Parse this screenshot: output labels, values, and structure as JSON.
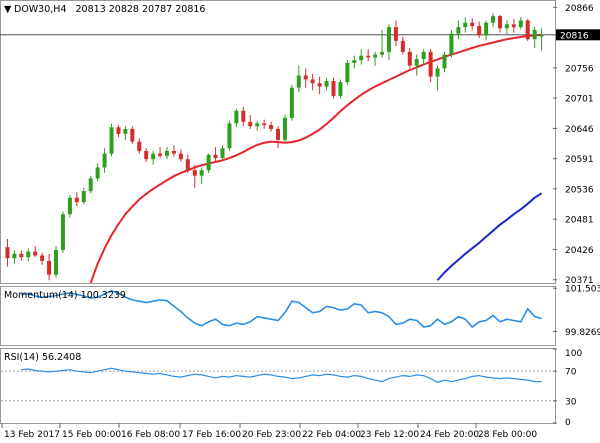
{
  "colors": {
    "bull": "#2e9e1f",
    "bear": "#d62b2b",
    "ma_fast": "#e8242a",
    "ma_slow": "#2026c9",
    "oscillator": "#2b8de8",
    "current_price_tag_bg": "#000000"
  },
  "chart_data": [
    {
      "type": "candlestick",
      "title": "DOW30,H4  20813 20828 20787 20816",
      "header": {
        "symbol_tf": "DOW30,H4",
        "ohlc": "20813 20828 20787 20816"
      },
      "x_tick_labels": [
        "13 Feb 2017",
        "15 Feb 00:00",
        "16 Feb 08:00",
        "17 Feb 16:00",
        "20 Feb 23:00",
        "22 Feb 04:00",
        "23 Feb 12:00",
        "24 Feb 20:00",
        "28 Feb 00:00"
      ],
      "y_tick_labels": [
        "20866",
        "20816",
        "20756",
        "20701",
        "20646",
        "20591",
        "20536",
        "20481",
        "20426",
        "20371"
      ],
      "ylim": [
        20365,
        20872
      ],
      "current_price": 20816,
      "current_price_label": "20816",
      "candles": [
        [
          20430,
          20445,
          20395,
          20410
        ],
        [
          20410,
          20425,
          20400,
          20418
        ],
        [
          20418,
          20424,
          20406,
          20412
        ],
        [
          20412,
          20428,
          20404,
          20422
        ],
        [
          20422,
          20432,
          20412,
          20415
        ],
        [
          20415,
          20420,
          20398,
          20405
        ],
        [
          20405,
          20418,
          20370,
          20380
        ],
        [
          20380,
          20432,
          20375,
          20425
        ],
        [
          20425,
          20495,
          20420,
          20490
        ],
        [
          20490,
          20525,
          20484,
          20520
        ],
        [
          20520,
          20530,
          20505,
          20512
        ],
        [
          20512,
          20538,
          20508,
          20532
        ],
        [
          20532,
          20560,
          20528,
          20555
        ],
        [
          20555,
          20582,
          20550,
          20575
        ],
        [
          20575,
          20610,
          20565,
          20600
        ],
        [
          20600,
          20655,
          20595,
          20648
        ],
        [
          20648,
          20652,
          20630,
          20636
        ],
        [
          20636,
          20650,
          20625,
          20645
        ],
        [
          20645,
          20650,
          20618,
          20622
        ],
        [
          20622,
          20628,
          20600,
          20605
        ],
        [
          20605,
          20610,
          20585,
          20590
        ],
        [
          20590,
          20605,
          20580,
          20600
        ],
        [
          20600,
          20612,
          20592,
          20596
        ],
        [
          20596,
          20612,
          20590,
          20605
        ],
        [
          20605,
          20615,
          20595,
          20600
        ],
        [
          20600,
          20608,
          20585,
          20590
        ],
        [
          20590,
          20598,
          20565,
          20570
        ],
        [
          20570,
          20580,
          20538,
          20560
        ],
        [
          20560,
          20575,
          20545,
          20570
        ],
        [
          20570,
          20600,
          20565,
          20598
        ],
        [
          20598,
          20612,
          20585,
          20592
        ],
        [
          20592,
          20615,
          20588,
          20610
        ],
        [
          20610,
          20660,
          20605,
          20655
        ],
        [
          20655,
          20682,
          20648,
          20678
        ],
        [
          20678,
          20685,
          20650,
          20658
        ],
        [
          20658,
          20670,
          20645,
          20650
        ],
        [
          20650,
          20660,
          20642,
          20655
        ],
        [
          20655,
          20662,
          20645,
          20652
        ],
        [
          20652,
          20658,
          20640,
          20645
        ],
        [
          20645,
          20650,
          20610,
          20625
        ],
        [
          20625,
          20670,
          20620,
          20665
        ],
        [
          20665,
          20725,
          20660,
          20720
        ],
        [
          20720,
          20760,
          20712,
          20742
        ],
        [
          20742,
          20755,
          20720,
          20735
        ],
        [
          20735,
          20745,
          20715,
          20728
        ],
        [
          20728,
          20740,
          20708,
          20722
        ],
        [
          20722,
          20738,
          20715,
          20732
        ],
        [
          20732,
          20738,
          20700,
          20705
        ],
        [
          20705,
          20735,
          20700,
          20730
        ],
        [
          20730,
          20770,
          20725,
          20765
        ],
        [
          20765,
          20778,
          20755,
          20770
        ],
        [
          20770,
          20790,
          20762,
          20778
        ],
        [
          20778,
          20790,
          20768,
          20775
        ],
        [
          20775,
          20785,
          20760,
          20780
        ],
        [
          20780,
          20825,
          20775,
          20785
        ],
        [
          20785,
          20835,
          20770,
          20830
        ],
        [
          20830,
          20842,
          20795,
          20805
        ],
        [
          20805,
          20812,
          20780,
          20785
        ],
        [
          20785,
          20792,
          20755,
          20760
        ],
        [
          20760,
          20780,
          20742,
          20772
        ],
        [
          20772,
          20790,
          20762,
          20785
        ],
        [
          20785,
          20790,
          20730,
          20740
        ],
        [
          20740,
          20760,
          20715,
          20755
        ],
        [
          20755,
          20785,
          20748,
          20780
        ],
        [
          20780,
          20825,
          20775,
          20818
        ],
        [
          20818,
          20842,
          20808,
          20830
        ],
        [
          20830,
          20848,
          20820,
          20838
        ],
        [
          20838,
          20846,
          20825,
          20832
        ],
        [
          20832,
          20840,
          20810,
          20815
        ],
        [
          20815,
          20842,
          20806,
          20838
        ],
        [
          20838,
          20855,
          20830,
          20850
        ],
        [
          20850,
          20852,
          20820,
          20828
        ],
        [
          20828,
          20842,
          20818,
          20835
        ],
        [
          20835,
          20845,
          20820,
          20830
        ],
        [
          20830,
          20848,
          20826,
          20842
        ],
        [
          20842,
          20845,
          20805,
          20808
        ],
        [
          20808,
          20830,
          20792,
          20825
        ],
        [
          20813,
          20828,
          20787,
          20816
        ]
      ],
      "ma_fast": [
        20295,
        20330,
        20365,
        20400,
        20428,
        20452,
        20472,
        20490,
        20504,
        20517,
        20527,
        20536,
        20544,
        20552,
        20559,
        20565,
        20570,
        20575,
        20579,
        20582,
        20585,
        20588,
        20592,
        20597,
        20603,
        20610,
        20616,
        20620,
        20622,
        20621,
        20620,
        20621,
        20624,
        20629,
        20636,
        20644,
        20654,
        20665,
        20677,
        20688,
        20698,
        20707,
        20715,
        20722,
        20728,
        20734,
        20740,
        20746,
        20752,
        20757,
        20762,
        20767,
        20771,
        20776,
        20780,
        20784,
        20788,
        20792,
        20796,
        20799,
        20802,
        20805,
        20808,
        20810,
        20812,
        20814,
        20815,
        20816
      ],
      "ma_slow": [
        20370,
        20384,
        20396,
        20407,
        20418,
        20428,
        20438,
        20449,
        20460,
        20471,
        20480,
        20490,
        20499,
        20509,
        20520,
        20528
      ]
    },
    {
      "type": "line",
      "title": "Momentum(14) 100.3239",
      "name": "Momentum(14)",
      "current_value": "100.3239",
      "y_tick_labels": [
        "101.5039",
        "99.8269"
      ],
      "ylim": [
        99.3,
        101.55
      ],
      "values": [
        101.25,
        101.3,
        101.2,
        101.15,
        101.18,
        101.22,
        101.28,
        101.32,
        101.26,
        101.2,
        101.12,
        101.15,
        101.28,
        101.4,
        101.3,
        101.15,
        101.05,
        101.0,
        100.95,
        101.0,
        101.05,
        101.02,
        100.8,
        100.6,
        100.35,
        100.15,
        100.05,
        100.2,
        100.3,
        100.1,
        100.05,
        100.15,
        100.1,
        100.2,
        100.4,
        100.35,
        100.3,
        100.25,
        100.55,
        101.0,
        100.95,
        100.75,
        100.55,
        100.6,
        100.8,
        100.75,
        100.65,
        100.7,
        100.9,
        100.85,
        100.55,
        100.6,
        100.55,
        100.4,
        100.1,
        100.15,
        100.3,
        100.25,
        100.0,
        100.05,
        100.3,
        100.1,
        100.2,
        100.4,
        100.3,
        100.0,
        100.2,
        100.25,
        100.45,
        100.2,
        100.3,
        100.25,
        100.2,
        100.7,
        100.4,
        100.32
      ]
    },
    {
      "type": "line",
      "title": "RSI(14) 56.2408",
      "name": "RSI(14)",
      "current_value": "56.2408",
      "y_tick_labels": [
        "100",
        "70",
        "30",
        "0"
      ],
      "ylim": [
        0,
        100
      ],
      "levels": [
        70,
        30
      ],
      "values": [
        72,
        73,
        71,
        70,
        69,
        70,
        71,
        72,
        70,
        69,
        68,
        70,
        72,
        74,
        72,
        70,
        69,
        68,
        67,
        66,
        67,
        65,
        63,
        62,
        64,
        66,
        65,
        63,
        61,
        63,
        62,
        64,
        63,
        62,
        64,
        66,
        65,
        63,
        62,
        60,
        61,
        63,
        65,
        64,
        66,
        65,
        63,
        62,
        64,
        63,
        60,
        58,
        56,
        60,
        62,
        64,
        63,
        65,
        64,
        60,
        55,
        58,
        56,
        58,
        60,
        63,
        64,
        62,
        61,
        60,
        61,
        60,
        59,
        58,
        56,
        56
      ]
    }
  ]
}
